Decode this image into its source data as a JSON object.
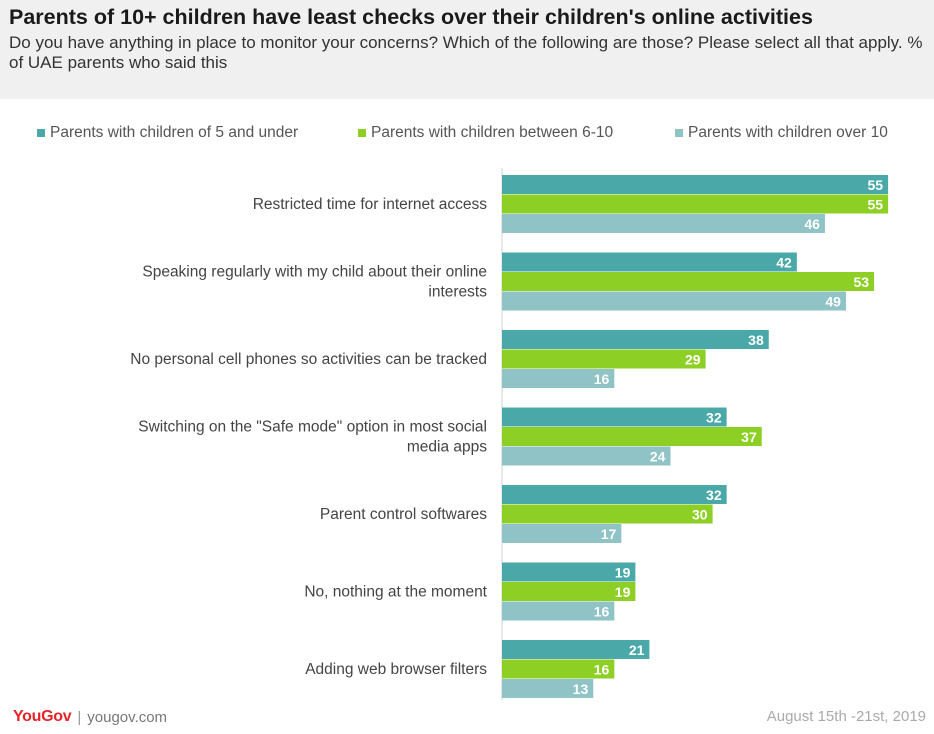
{
  "header": {
    "title": "Parents of 10+ children have least checks over their children's online activities",
    "subtitle": "Do you have anything in place to monitor your concerns? Which of the following are those? Please select all that apply. % of UAE parents who said this"
  },
  "footer": {
    "brand": "YouGov",
    "url": "yougov.com",
    "date": "August 15th -21st, 2019"
  },
  "colors": {
    "series_1": "#4aa9a8",
    "series_2": "#8ecf26",
    "series_3": "#8fc3c6"
  },
  "chart_data": {
    "type": "bar",
    "orientation": "horizontal",
    "title": "Parents of 10+ children have least checks over their children's online activities",
    "xlim": [
      0,
      60
    ],
    "grid": false,
    "legend_position": "top",
    "categories": [
      "Restricted time for internet access",
      "Speaking regularly with my child about their online interests",
      "No personal cell phones so activities can be tracked",
      "Switching on the \"Safe mode\" option in most social media apps",
      "Parent control softwares",
      "No, nothing at the moment",
      "Adding web browser filters"
    ],
    "series": [
      {
        "name": "Parents with children of 5 and under",
        "values": [
          55,
          42,
          38,
          32,
          32,
          19,
          21
        ]
      },
      {
        "name": "Parents with children between 6-10",
        "values": [
          55,
          53,
          29,
          37,
          30,
          19,
          16
        ]
      },
      {
        "name": "Parents with children over 10",
        "values": [
          46,
          49,
          16,
          24,
          17,
          16,
          13
        ]
      }
    ]
  }
}
